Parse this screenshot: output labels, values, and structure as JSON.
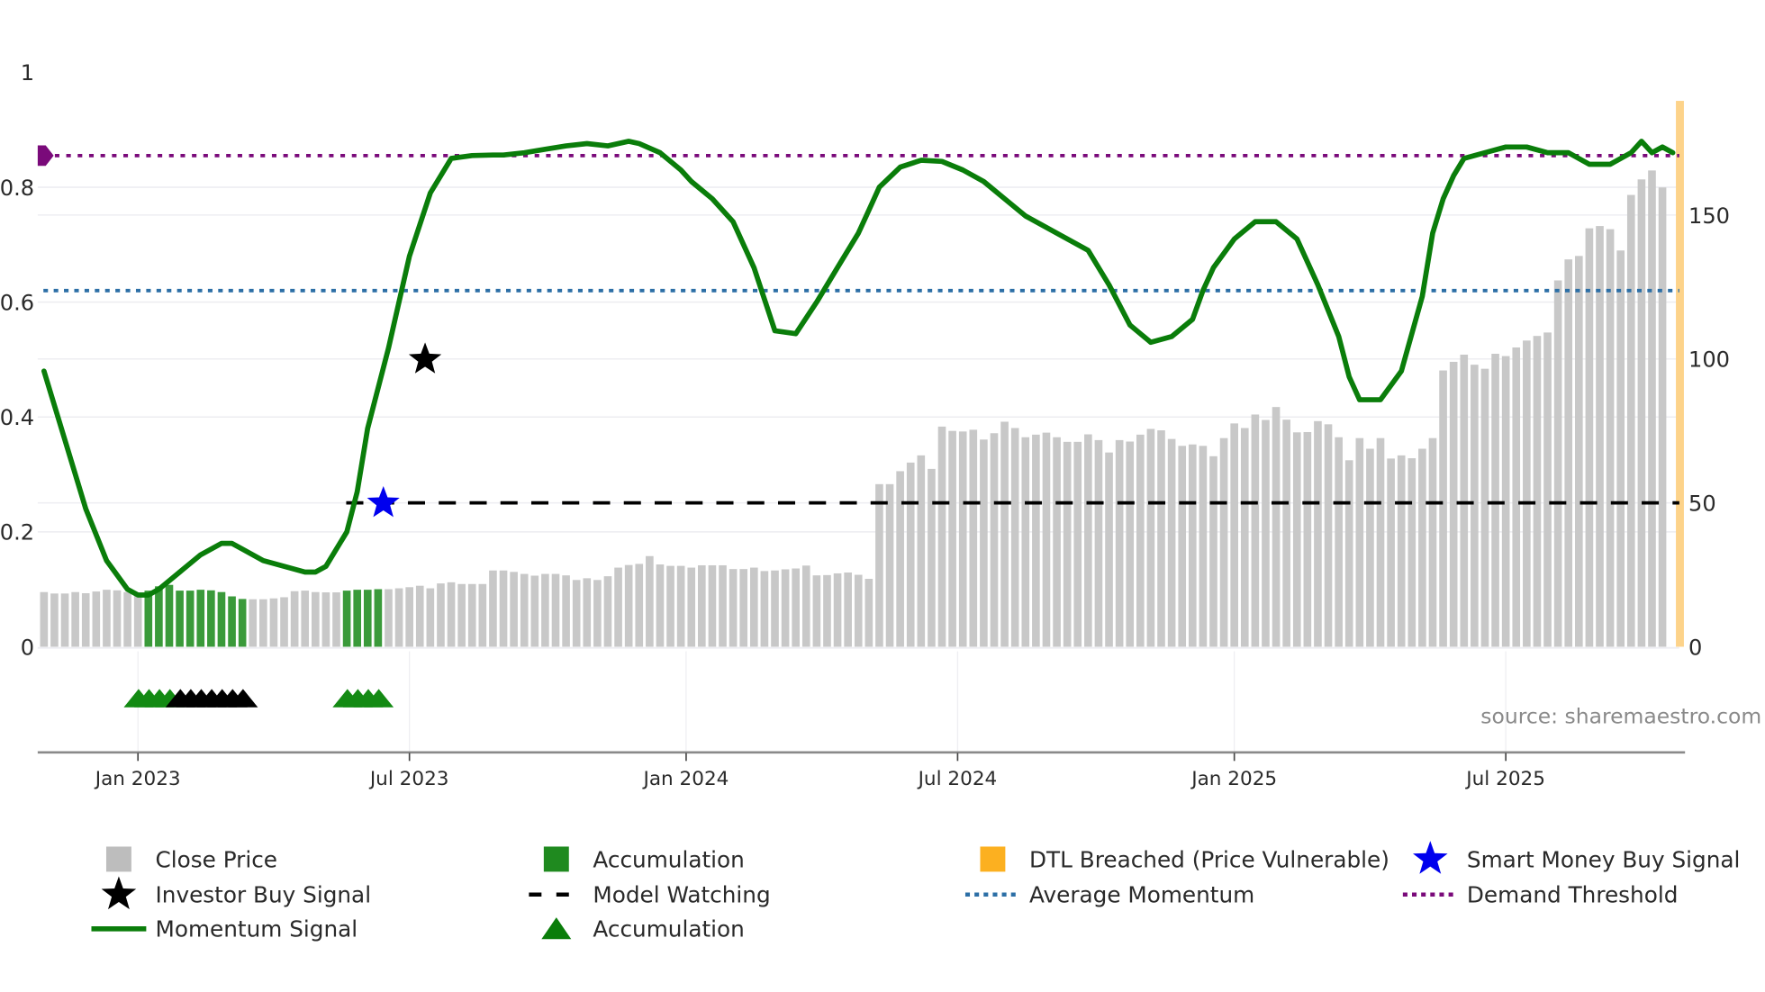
{
  "chart_data": {
    "type": "bar+line",
    "title": "",
    "source": "source: sharemaestro.com",
    "x_axis": {
      "tick_labels": [
        "Jan 2023",
        "Jul 2023",
        "Jan 2024",
        "Jul 2024",
        "Jan 2025",
        "Jul 2025"
      ],
      "tick_bar_index": [
        9,
        35,
        61.5,
        87.5,
        114,
        140
      ]
    },
    "y_left": {
      "label": "",
      "range": [
        0,
        1
      ],
      "ticks": [
        "0",
        "0.2",
        "0.4",
        "0.6",
        "0.8",
        "1"
      ]
    },
    "y_right": {
      "label": "",
      "range": [
        0,
        190
      ],
      "ticks": [
        "0",
        "50",
        "100",
        "150"
      ]
    },
    "colors": {
      "close_price": "#c8c8c8",
      "accumulation_bar": "#2e8b2e",
      "momentum": "#0a7d0a",
      "model_watching": "#000000",
      "average_momentum": "#2c6fa6",
      "demand_threshold": "#7a0a7a",
      "dtl_breached": "#fdd38a",
      "smart_money_star": "#0000ee",
      "investor_star": "#000000",
      "accumulation_triangle": "#138a13"
    },
    "close_price": [
      19,
      18.5,
      18.5,
      19,
      18.6,
      19.2,
      19.8,
      19.6,
      19,
      18.2,
      19.5,
      21,
      21.5,
      19.5,
      19.5,
      19.8,
      19.6,
      19,
      17.5,
      16.6,
      16.5,
      16.5,
      16.8,
      17.2,
      19.3,
      19.5,
      19,
      18.9,
      18.9,
      19.5,
      19.8,
      19.8,
      20,
      20,
      20.3,
      20.7,
      21.2,
      20.3,
      22,
      22.4,
      21.8,
      21.8,
      21.8,
      26.5,
      26.5,
      26,
      25.3,
      24.7,
      25.3,
      25.3,
      24.8,
      23.2,
      23.8,
      23.2,
      24.5,
      27.5,
      28.4,
      28.8,
      31.5,
      28.6,
      28.1,
      28.1,
      27.5,
      28.3,
      28.3,
      28.3,
      27,
      27,
      27.5,
      26.3,
      26.5,
      26.9,
      27.2,
      28.2,
      24.8,
      24.9,
      25.5,
      25.8,
      25,
      23.6,
      56.5,
      56.5,
      61,
      64,
      66.5,
      61.8,
      76.5,
      75,
      74.8,
      75.4,
      72,
      74.2,
      78.2,
      76,
      72.8,
      73.7,
      74.4,
      72.8,
      71.2,
      71.2,
      73.8,
      71.8,
      67.5,
      71.8,
      71.3,
      73.7,
      75.7,
      75.2,
      72.2,
      69.8,
      70.3,
      69.8,
      66.2,
      72.5,
      77.6,
      76,
      80.7,
      78.8,
      83.3,
      78.9,
      74.5,
      74.6,
      78.4,
      77.3,
      72.8,
      64.8,
      72.5,
      68.8,
      72.5,
      65.4,
      66.5,
      65.5,
      68.8,
      72.5,
      96,
      99,
      101.5,
      98,
      96.6,
      101.8,
      101,
      104,
      106.4,
      108,
      109.2,
      127.3,
      134.6,
      135.8,
      145.4,
      146.2,
      145.1,
      137.7,
      157,
      162.4,
      165.5,
      159.6
    ],
    "accumulation_bar_indices": [
      10,
      11,
      12,
      13,
      14,
      15,
      16,
      17,
      18,
      19,
      29,
      30,
      31,
      32
    ],
    "momentum": {
      "x_bar_index": [
        0,
        2,
        4,
        6,
        8,
        9,
        10,
        11,
        13,
        15,
        17,
        18,
        19,
        21,
        23,
        25,
        26,
        27,
        29,
        30,
        31,
        33,
        35,
        37,
        39,
        41,
        43,
        44,
        46,
        48,
        50,
        52,
        54,
        56,
        57,
        59,
        61,
        62,
        64,
        66,
        68,
        70,
        72,
        74,
        76,
        78,
        79,
        80,
        82,
        84,
        86,
        88,
        90,
        92,
        94,
        96,
        98,
        100,
        102,
        104,
        106,
        108,
        110,
        111,
        112,
        114,
        116,
        118,
        120,
        122,
        124,
        125,
        126,
        128,
        130,
        132,
        133,
        134,
        135,
        136,
        138,
        140,
        142,
        144,
        146,
        148,
        149,
        150,
        152,
        153,
        154,
        155,
        156
      ],
      "values": [
        0.48,
        0.36,
        0.24,
        0.15,
        0.1,
        0.09,
        0.09,
        0.1,
        0.13,
        0.16,
        0.18,
        0.18,
        0.17,
        0.15,
        0.14,
        0.13,
        0.13,
        0.14,
        0.2,
        0.27,
        0.38,
        0.52,
        0.68,
        0.79,
        0.85,
        0.855,
        0.856,
        0.856,
        0.86,
        0.866,
        0.872,
        0.876,
        0.872,
        0.88,
        0.876,
        0.86,
        0.83,
        0.81,
        0.78,
        0.74,
        0.66,
        0.55,
        0.545,
        0.6,
        0.66,
        0.72,
        0.76,
        0.8,
        0.835,
        0.847,
        0.845,
        0.83,
        0.81,
        0.78,
        0.75,
        0.73,
        0.71,
        0.69,
        0.63,
        0.56,
        0.53,
        0.54,
        0.57,
        0.62,
        0.66,
        0.71,
        0.74,
        0.74,
        0.71,
        0.63,
        0.54,
        0.47,
        0.43,
        0.43,
        0.48,
        0.61,
        0.72,
        0.78,
        0.82,
        0.85,
        0.86,
        0.87,
        0.87,
        0.86,
        0.86,
        0.84,
        0.84,
        0.84,
        0.86,
        0.88,
        0.86,
        0.87,
        0.86
      ],
      "name": "Momentum Signal"
    },
    "average_momentum": 0.62,
    "demand_threshold": 0.855,
    "model_watching": {
      "value_right_axis": 50,
      "start_bar_index": 29,
      "end_bar_index": 156
    },
    "investor_buy_signal": {
      "bar_index": 36.5,
      "value": 0.5
    },
    "smart_money_buy_signal": {
      "bar_index": 32.5,
      "value": 0.25
    },
    "accumulation_triangles": {
      "green_bar_indices": [
        9.5,
        10.5,
        11.5,
        12.5,
        29.5,
        30.5,
        31.5,
        32.5
      ],
      "black_bar_indices": [
        13.5,
        14.5,
        15.5,
        16.5,
        17.5,
        18.5,
        19.5
      ],
      "y_level": -0.09
    },
    "dtl_breached_bar_index": 157,
    "legend": [
      {
        "label": "Close Price",
        "symbol": "square",
        "color": "#bdbdbd"
      },
      {
        "label": "Accumulation",
        "symbol": "square",
        "color": "#1f8a1f"
      },
      {
        "label": "DTL Breached (Price Vulnerable)",
        "symbol": "square",
        "color": "#fcb020"
      },
      {
        "label": "Smart Money Buy Signal",
        "symbol": "star",
        "color": "#0000ee"
      },
      {
        "label": "Investor Buy Signal",
        "symbol": "star",
        "color": "#000000"
      },
      {
        "label": "Model Watching",
        "symbol": "dash",
        "color": "#000000"
      },
      {
        "label": "Average Momentum",
        "symbol": "dot",
        "color": "#2c6fa6"
      },
      {
        "label": "Demand Threshold",
        "symbol": "dot",
        "color": "#7a0a7a"
      },
      {
        "label": "Momentum Signal",
        "symbol": "line",
        "color": "#0a7d0a"
      },
      {
        "label": "Accumulation",
        "symbol": "triangle",
        "color": "#0a7d0a"
      }
    ]
  }
}
